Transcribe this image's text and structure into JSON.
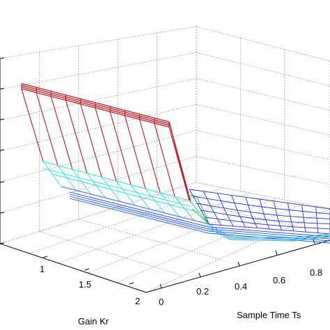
{
  "chart_data": {
    "type": "surface",
    "title": "",
    "xlabel": "Gain Kr",
    "ylabel": "Sample Time Ts",
    "zlabel": "",
    "grid": true,
    "x_ticks": [
      "1",
      "1.5",
      "2"
    ],
    "y_ticks": [
      "0",
      "0.2",
      "0.4",
      "0.6",
      "0.8"
    ],
    "colormap": "jet",
    "surfaces": [
      {
        "name": "",
        "description": "upper surface: high value at small Ts dropping sharply near Ts ~ 0.2, then flat low mesh",
        "edge_color": "#c0141c"
      },
      {
        "name": "",
        "description": "lower surface: cyan/blue sloping mesh merging into flat blue mesh",
        "edge_color": "#38e0e0"
      }
    ]
  }
}
